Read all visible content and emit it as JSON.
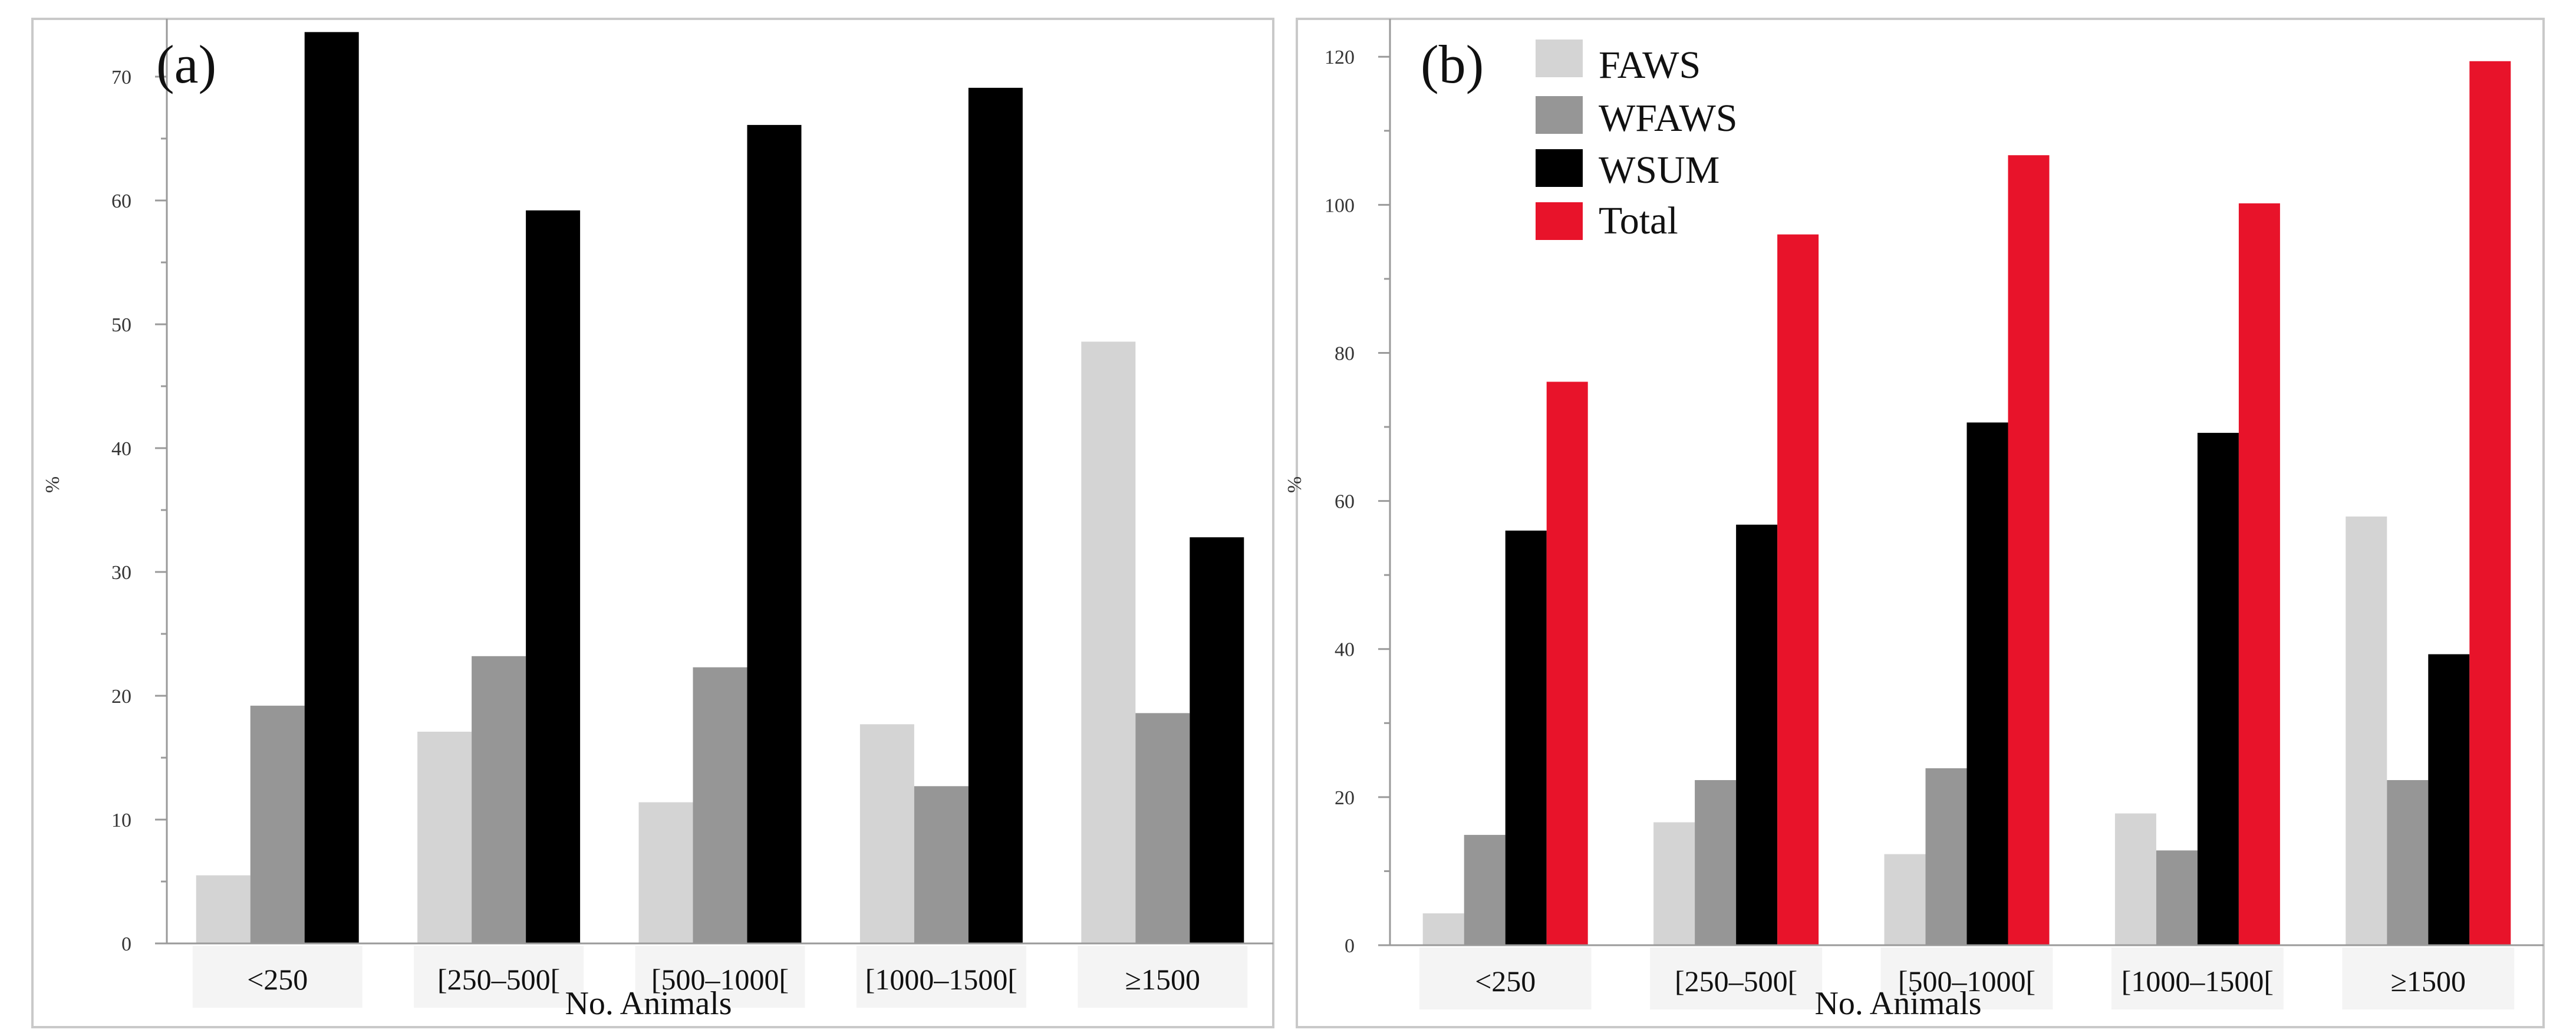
{
  "chart_data": [
    {
      "type": "bar",
      "panel_label": "(a)",
      "xlabel": "No. Animals",
      "ylabel": "%",
      "ylim": [
        0,
        74
      ],
      "yticks": [
        0,
        10,
        20,
        30,
        40,
        50,
        60,
        70
      ],
      "categories": [
        "<250",
        "[250–500[",
        "[500–1000[",
        "[1000–1500[",
        "≥1500"
      ],
      "series": [
        {
          "name": "FAWS",
          "color": "#d4d4d4",
          "values": [
            5.5,
            17.1,
            11.4,
            17.7,
            48.6
          ]
        },
        {
          "name": "WFAWS",
          "color": "#969696",
          "values": [
            19.2,
            23.2,
            22.3,
            12.7,
            18.6
          ]
        },
        {
          "name": "WSUM",
          "color": "#000000",
          "values": [
            73.6,
            59.2,
            66.1,
            69.1,
            32.8
          ]
        }
      ],
      "legend": "none"
    },
    {
      "type": "bar",
      "panel_label": "(b)",
      "xlabel": "No. Animals",
      "ylabel": "%",
      "ylim": [
        0,
        124
      ],
      "yticks": [
        0,
        20,
        40,
        60,
        80,
        100,
        120
      ],
      "categories": [
        "<250",
        "[250–500[",
        "[500–1000[",
        "[1000–1500[",
        "≥1500"
      ],
      "series": [
        {
          "name": "FAWS",
          "color": "#d4d4d4",
          "values": [
            4.3,
            16.6,
            12.3,
            17.8,
            57.9
          ]
        },
        {
          "name": "WFAWS",
          "color": "#969696",
          "values": [
            14.9,
            22.3,
            23.9,
            12.8,
            22.3
          ]
        },
        {
          "name": "WSUM",
          "color": "#000000",
          "values": [
            56.0,
            56.8,
            70.6,
            69.2,
            39.3
          ]
        },
        {
          "name": "Total",
          "color": "#e8132a",
          "values": [
            76.1,
            96.0,
            106.7,
            100.2,
            119.4
          ]
        }
      ],
      "legend": "top-left"
    }
  ]
}
